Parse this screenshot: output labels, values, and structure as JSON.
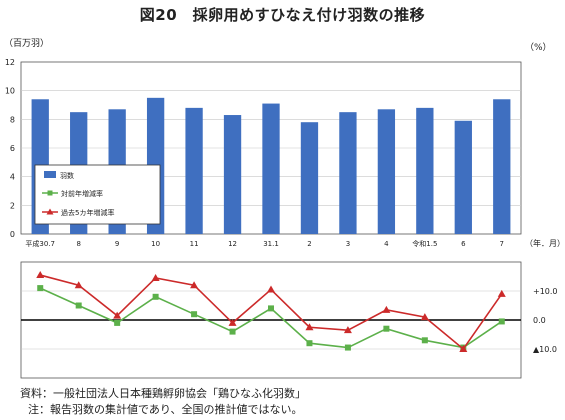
{
  "title": "図20　採卵用めすひなえ付け羽数の推移",
  "y_unit_left": "（百万羽）",
  "y_unit_right": "（%）",
  "x_unit": "（年．月）",
  "source_note": "資料：一般社団法人日本種鶏孵卵協会「鶏ひなふ化羽数」",
  "footnote": "注：報告羽数の集計値であり、全国の推計値ではない。",
  "colors": {
    "bar": "#3f6fc0",
    "yoy": "#5cb04a",
    "five_year": "#cc2a2a"
  },
  "chart_data": [
    {
      "type": "bar",
      "categories": [
        "平成30.7",
        "8",
        "9",
        "10",
        "11",
        "12",
        "31.1",
        "2",
        "3",
        "4",
        "令和1.5",
        "6",
        "7"
      ],
      "series": [
        {
          "name": "羽数",
          "values": [
            9.4,
            8.5,
            8.7,
            9.5,
            8.8,
            8.3,
            9.1,
            7.8,
            8.5,
            8.7,
            8.8,
            7.9,
            9.4
          ]
        }
      ],
      "ylim": [
        0,
        12
      ],
      "yticks": [
        "0",
        "2",
        "4",
        "6",
        "8",
        "10",
        "12"
      ],
      "legend": [
        "羽数",
        "対前年増減率",
        "過去5カ年増減率"
      ]
    },
    {
      "type": "line",
      "categories": [
        "平成30.7",
        "8",
        "9",
        "10",
        "11",
        "12",
        "31.1",
        "2",
        "3",
        "4",
        "令和1.5",
        "6",
        "7"
      ],
      "series": [
        {
          "name": "対前年増減率",
          "values": [
            11.0,
            5.0,
            -1.0,
            8.0,
            2.0,
            -4.0,
            4.0,
            -8.0,
            -9.5,
            -3.0,
            -7.0,
            -9.5,
            -0.5
          ]
        },
        {
          "name": "過去5カ年増減率",
          "values": [
            15.5,
            12.0,
            1.5,
            14.5,
            12.0,
            -1.0,
            10.5,
            -2.5,
            -3.5,
            3.5,
            1.0,
            -10.0,
            9.0
          ]
        }
      ],
      "ylim": [
        -20,
        20
      ],
      "yticks": [
        "+10.0",
        "0.0",
        "▲10.0"
      ]
    }
  ]
}
